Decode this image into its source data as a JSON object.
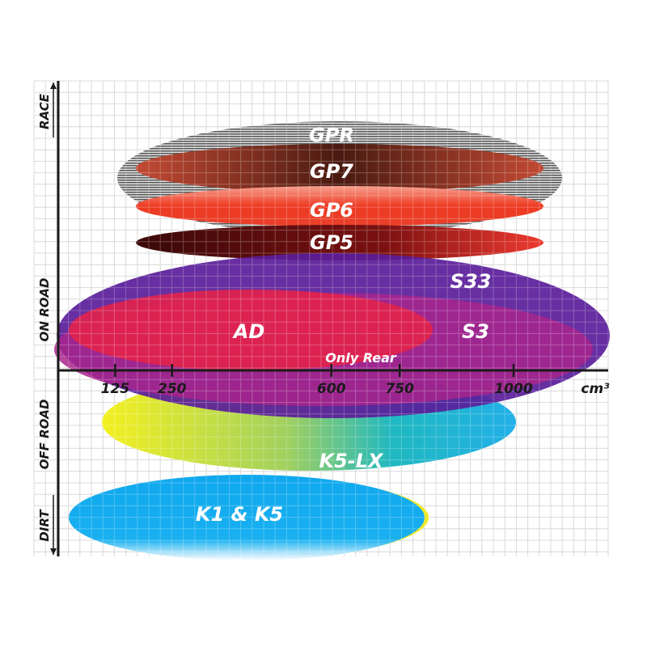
{
  "x_axis": {
    "unit": "cm³",
    "ticks": [
      {
        "value": 125,
        "label": "125"
      },
      {
        "value": 250,
        "label": "250"
      },
      {
        "value": 600,
        "label": "600"
      },
      {
        "value": 750,
        "label": "750"
      },
      {
        "value": 1000,
        "label": "1000"
      }
    ]
  },
  "y_axis": {
    "categories": [
      "RACE",
      "ON ROAD",
      "OFF ROAD",
      "DIRT"
    ]
  },
  "ranges": [
    {
      "name": "GPR",
      "label": "GPR",
      "color": "#9a9a9a"
    },
    {
      "name": "GP7",
      "label": "GP7",
      "color": "#b8402e"
    },
    {
      "name": "GP6",
      "label": "GP6",
      "color": "#ee4a2a"
    },
    {
      "name": "GP5",
      "label": "GP5",
      "color": "#8a1010"
    },
    {
      "name": "S33",
      "label": "S33",
      "color": "#5a1d9a"
    },
    {
      "name": "S3",
      "label": "S3",
      "color": "#a8248c"
    },
    {
      "name": "AD",
      "label": "AD",
      "color": "#e2224a"
    },
    {
      "name": "K5-LX",
      "label": "K5-LX",
      "color": "#22b8d8"
    },
    {
      "name": "K1 & K5",
      "label": "K1 & K5",
      "color": "#10a8ee"
    }
  ],
  "annotation": "Only Rear"
}
